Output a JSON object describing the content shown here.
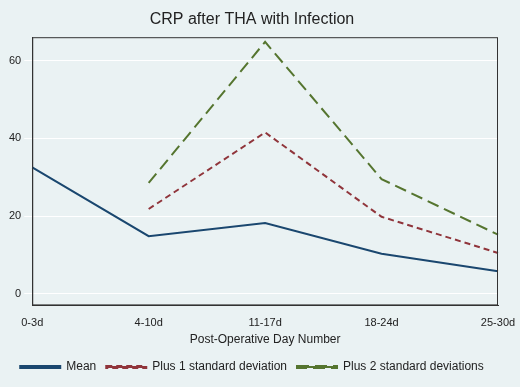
{
  "chart_data": {
    "type": "line",
    "title": "CRP after THA with Infection",
    "x_label": "Post-Operative Day Number",
    "categories": [
      "0-3d",
      "4-10d",
      "11-17d",
      "18-24d",
      "25-30d"
    ],
    "series": [
      {
        "name": "Mean",
        "color": "#1a476f",
        "line_style": "solid",
        "values": [
          32.5,
          14.8,
          18.2,
          10.3,
          5.8
        ]
      },
      {
        "name": "Plus 1 standard deviation",
        "color": "#90353b",
        "line_style": "dashed",
        "values": [
          null,
          21.8,
          41.5,
          19.8,
          10.5
        ]
      },
      {
        "name": "Plus 2 standard deviations",
        "color": "#55752f",
        "line_style": "longdash",
        "values": [
          null,
          28.5,
          64.8,
          29.5,
          15.2
        ]
      }
    ],
    "ylim": [
      -3,
      66
    ],
    "yticks": [
      0,
      20,
      40,
      60
    ],
    "grid": true,
    "legend": "bottom"
  }
}
